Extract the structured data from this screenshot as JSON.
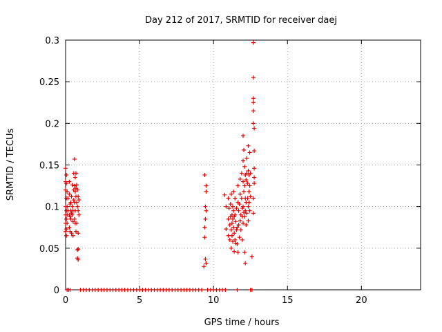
{
  "chart_data": {
    "type": "scatter",
    "title": "Day 212 of 2017, SRMTID for receiver daej",
    "xlabel": "GPS time / hours",
    "ylabel": "SRMTID / TECUs",
    "xlim": [
      0,
      24
    ],
    "ylim": [
      0,
      0.3
    ],
    "x_ticks": [
      0,
      5,
      10,
      15,
      20
    ],
    "y_ticks": [
      0,
      0.05,
      0.1,
      0.15,
      0.2,
      0.25,
      0.3
    ],
    "y_tick_labels": [
      "0",
      "0.05",
      "0.1",
      "0.15",
      "0.2",
      "0.25",
      "0.3"
    ],
    "grid": true,
    "marker": "+",
    "color": "#e00000",
    "points": [
      [
        0.0,
        0.146
      ],
      [
        0.0,
        0.13
      ],
      [
        0.0,
        0.12
      ],
      [
        0.0,
        0.1
      ],
      [
        0.0,
        0.09
      ],
      [
        0.0,
        0.08
      ],
      [
        0.0,
        0.07
      ],
      [
        0.05,
        0.138
      ],
      [
        0.05,
        0.128
      ],
      [
        0.05,
        0.11
      ],
      [
        0.05,
        0.095
      ],
      [
        0.05,
        0.085
      ],
      [
        0.05,
        0.073
      ],
      [
        0.05,
        0.065
      ],
      [
        0.1,
        0.118
      ],
      [
        0.1,
        0.1
      ],
      [
        0.1,
        0.09
      ],
      [
        0.1,
        0.08
      ],
      [
        0.15,
        0.11
      ],
      [
        0.15,
        0.095
      ],
      [
        0.25,
        0.13
      ],
      [
        0.25,
        0.115
      ],
      [
        0.25,
        0.09
      ],
      [
        0.25,
        0.075
      ],
      [
        0.3,
        0.103
      ],
      [
        0.3,
        0.088
      ],
      [
        0.3,
        0.07
      ],
      [
        0.35,
        0.105
      ],
      [
        0.35,
        0.095
      ],
      [
        0.35,
        0.085
      ],
      [
        0.4,
        0.112
      ],
      [
        0.4,
        0.092
      ],
      [
        0.4,
        0.068
      ],
      [
        0.45,
        0.126
      ],
      [
        0.45,
        0.1
      ],
      [
        0.45,
        0.09
      ],
      [
        0.5,
        0.095
      ],
      [
        0.5,
        0.082
      ],
      [
        0.5,
        0.065
      ],
      [
        0.55,
        0.14
      ],
      [
        0.55,
        0.12
      ],
      [
        0.55,
        0.108
      ],
      [
        0.6,
        0.157
      ],
      [
        0.6,
        0.125
      ],
      [
        0.6,
        0.105
      ],
      [
        0.6,
        0.085
      ],
      [
        0.65,
        0.135
      ],
      [
        0.65,
        0.118
      ],
      [
        0.65,
        0.095
      ],
      [
        0.65,
        0.08
      ],
      [
        0.7,
        0.14
      ],
      [
        0.7,
        0.122
      ],
      [
        0.7,
        0.112
      ],
      [
        0.7,
        0.07
      ],
      [
        0.75,
        0.126
      ],
      [
        0.75,
        0.105
      ],
      [
        0.75,
        0.08
      ],
      [
        0.8,
        0.12
      ],
      [
        0.8,
        0.1
      ],
      [
        0.8,
        0.048
      ],
      [
        0.8,
        0.038
      ],
      [
        0.85,
        0.112
      ],
      [
        0.85,
        0.095
      ],
      [
        0.85,
        0.068
      ],
      [
        0.85,
        0.049
      ],
      [
        0.85,
        0.036
      ],
      [
        0.9,
        0.108
      ],
      [
        0.9,
        0.09
      ],
      [
        9.35,
        0.028
      ],
      [
        9.4,
        0.138
      ],
      [
        9.4,
        0.075
      ],
      [
        9.4,
        0.063
      ],
      [
        9.45,
        0.1
      ],
      [
        9.45,
        0.085
      ],
      [
        9.45,
        0.037
      ],
      [
        9.5,
        0.125
      ],
      [
        9.5,
        0.118
      ],
      [
        9.5,
        0.095
      ],
      [
        9.5,
        0.032
      ],
      [
        10.75,
        0.114
      ],
      [
        10.85,
        0.1
      ],
      [
        10.85,
        0.073
      ],
      [
        11.0,
        0.11
      ],
      [
        11.0,
        0.085
      ],
      [
        11.0,
        0.065
      ],
      [
        11.05,
        0.098
      ],
      [
        11.1,
        0.078
      ],
      [
        11.1,
        0.06
      ],
      [
        11.15,
        0.103
      ],
      [
        11.15,
        0.088
      ],
      [
        11.2,
        0.115
      ],
      [
        11.2,
        0.072
      ],
      [
        11.2,
        0.05
      ],
      [
        11.25,
        0.09
      ],
      [
        11.25,
        0.08
      ],
      [
        11.25,
        0.065
      ],
      [
        11.3,
        0.1
      ],
      [
        11.3,
        0.085
      ],
      [
        11.3,
        0.058
      ],
      [
        11.35,
        0.118
      ],
      [
        11.35,
        0.095
      ],
      [
        11.35,
        0.075
      ],
      [
        11.4,
        0.088
      ],
      [
        11.4,
        0.068
      ],
      [
        11.4,
        0.046
      ],
      [
        11.45,
        0.11
      ],
      [
        11.45,
        0.09
      ],
      [
        11.45,
        0.06
      ],
      [
        11.5,
        0.082
      ],
      [
        11.5,
        0.056
      ],
      [
        11.55,
        0.098
      ],
      [
        11.55,
        0.072
      ],
      [
        11.6,
        0.075
      ],
      [
        11.6,
        0.055
      ],
      [
        11.65,
        0.125
      ],
      [
        11.65,
        0.105
      ],
      [
        11.65,
        0.045
      ],
      [
        11.7,
        0.095
      ],
      [
        11.7,
        0.078
      ],
      [
        11.75,
        0.103
      ],
      [
        11.75,
        0.063
      ],
      [
        11.8,
        0.133
      ],
      [
        11.8,
        0.115
      ],
      [
        11.8,
        0.083
      ],
      [
        11.85,
        0.09
      ],
      [
        11.85,
        0.072
      ],
      [
        11.9,
        0.14
      ],
      [
        11.9,
        0.11
      ],
      [
        11.95,
        0.098
      ],
      [
        11.95,
        0.088
      ],
      [
        11.95,
        0.06
      ],
      [
        12.0,
        0.185
      ],
      [
        12.0,
        0.155
      ],
      [
        12.0,
        0.13
      ],
      [
        12.0,
        0.1
      ],
      [
        12.0,
        0.08
      ],
      [
        12.05,
        0.168
      ],
      [
        12.05,
        0.118
      ],
      [
        12.05,
        0.093
      ],
      [
        12.1,
        0.148
      ],
      [
        12.1,
        0.125
      ],
      [
        12.1,
        0.088
      ],
      [
        12.1,
        0.045
      ],
      [
        12.15,
        0.138
      ],
      [
        12.15,
        0.11
      ],
      [
        12.15,
        0.095
      ],
      [
        12.15,
        0.032
      ],
      [
        12.2,
        0.132
      ],
      [
        12.2,
        0.105
      ],
      [
        12.2,
        0.078
      ],
      [
        12.25,
        0.158
      ],
      [
        12.25,
        0.14
      ],
      [
        12.25,
        0.092
      ],
      [
        12.3,
        0.128
      ],
      [
        12.3,
        0.11
      ],
      [
        12.35,
        0.173
      ],
      [
        12.35,
        0.143
      ],
      [
        12.35,
        0.1
      ],
      [
        12.35,
        0.083
      ],
      [
        12.4,
        0.138
      ],
      [
        12.4,
        0.118
      ],
      [
        12.4,
        0.105
      ],
      [
        12.45,
        0.165
      ],
      [
        12.45,
        0.125
      ],
      [
        12.45,
        0.095
      ],
      [
        12.5,
        0.14
      ],
      [
        12.5,
        0.112
      ],
      [
        12.6,
        0.04
      ],
      [
        12.7,
        0.297
      ],
      [
        12.7,
        0.255
      ],
      [
        12.7,
        0.23
      ],
      [
        12.7,
        0.225
      ],
      [
        12.7,
        0.215
      ],
      [
        12.7,
        0.2
      ],
      [
        12.7,
        0.11
      ],
      [
        12.7,
        0.092
      ],
      [
        12.75,
        0.194
      ],
      [
        12.75,
        0.167
      ],
      [
        12.75,
        0.146
      ],
      [
        12.75,
        0.135
      ],
      [
        12.75,
        0.128
      ],
      [
        0.1,
        0.0
      ],
      [
        0.2,
        0.0
      ],
      [
        0.3,
        0.0
      ],
      [
        1.0,
        0.0
      ],
      [
        1.2,
        0.0
      ],
      [
        1.4,
        0.0
      ],
      [
        1.6,
        0.0
      ],
      [
        1.8,
        0.0
      ],
      [
        2.0,
        0.0
      ],
      [
        2.2,
        0.0
      ],
      [
        2.4,
        0.0
      ],
      [
        2.6,
        0.0
      ],
      [
        2.8,
        0.0
      ],
      [
        3.0,
        0.0
      ],
      [
        3.2,
        0.0
      ],
      [
        3.4,
        0.0
      ],
      [
        3.6,
        0.0
      ],
      [
        3.8,
        0.0
      ],
      [
        4.0,
        0.0
      ],
      [
        4.2,
        0.0
      ],
      [
        4.4,
        0.0
      ],
      [
        4.6,
        0.0
      ],
      [
        4.8,
        0.0
      ],
      [
        5.0,
        0.0
      ],
      [
        5.2,
        0.0
      ],
      [
        5.4,
        0.0
      ],
      [
        5.6,
        0.0
      ],
      [
        5.8,
        0.0
      ],
      [
        6.0,
        0.0
      ],
      [
        6.2,
        0.0
      ],
      [
        6.4,
        0.0
      ],
      [
        6.6,
        0.0
      ],
      [
        6.8,
        0.0
      ],
      [
        7.0,
        0.0
      ],
      [
        7.2,
        0.0
      ],
      [
        7.4,
        0.0
      ],
      [
        7.6,
        0.0
      ],
      [
        7.8,
        0.0
      ],
      [
        8.0,
        0.0
      ],
      [
        8.2,
        0.0
      ],
      [
        8.4,
        0.0
      ],
      [
        8.6,
        0.0
      ],
      [
        8.8,
        0.0
      ],
      [
        9.0,
        0.0
      ],
      [
        9.2,
        0.0
      ],
      [
        9.6,
        0.0
      ],
      [
        9.8,
        0.0
      ],
      [
        10.0,
        0.0
      ],
      [
        10.2,
        0.0
      ],
      [
        10.4,
        0.0
      ],
      [
        10.6,
        0.0
      ],
      [
        10.8,
        0.0
      ],
      [
        11.6,
        0.0
      ],
      [
        12.5,
        0.0
      ],
      [
        12.6,
        0.0
      ]
    ]
  }
}
